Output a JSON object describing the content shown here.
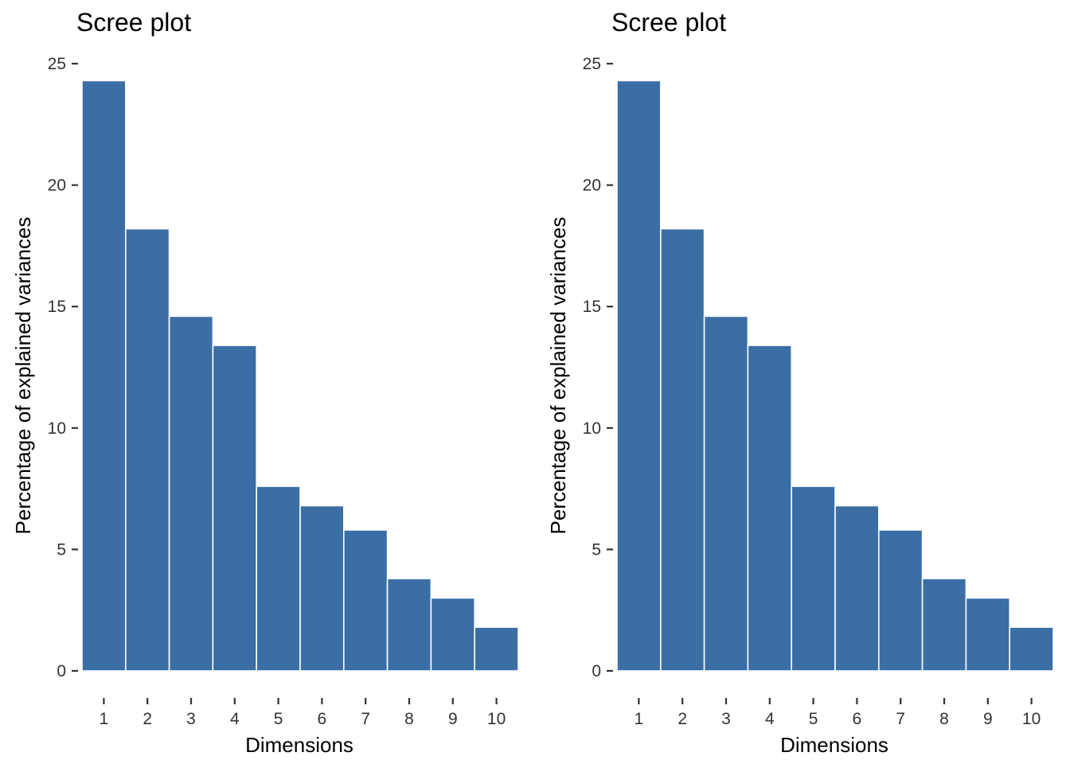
{
  "chart_data": [
    {
      "type": "bar",
      "title": "Scree plot",
      "xlabel": "Dimensions",
      "ylabel": "Percentage of explained variances",
      "categories": [
        "1",
        "2",
        "3",
        "4",
        "5",
        "6",
        "7",
        "8",
        "9",
        "10"
      ],
      "values": [
        24.3,
        18.2,
        14.6,
        13.4,
        7.6,
        6.8,
        5.8,
        3.8,
        3.0,
        1.8
      ],
      "yticks": [
        0,
        5,
        10,
        15,
        20,
        25
      ],
      "ylim": [
        0,
        25
      ],
      "grid": false,
      "bar_color": "#3A6EA5"
    },
    {
      "type": "bar",
      "title": "Scree plot",
      "xlabel": "Dimensions",
      "ylabel": "Percentage of explained variances",
      "categories": [
        "1",
        "2",
        "3",
        "4",
        "5",
        "6",
        "7",
        "8",
        "9",
        "10"
      ],
      "values": [
        24.3,
        18.2,
        14.6,
        13.4,
        7.6,
        6.8,
        5.8,
        3.8,
        3.0,
        1.8
      ],
      "yticks": [
        0,
        5,
        10,
        15,
        20,
        25
      ],
      "ylim": [
        0,
        25
      ],
      "grid": false,
      "bar_color": "#3A6EA5"
    }
  ]
}
